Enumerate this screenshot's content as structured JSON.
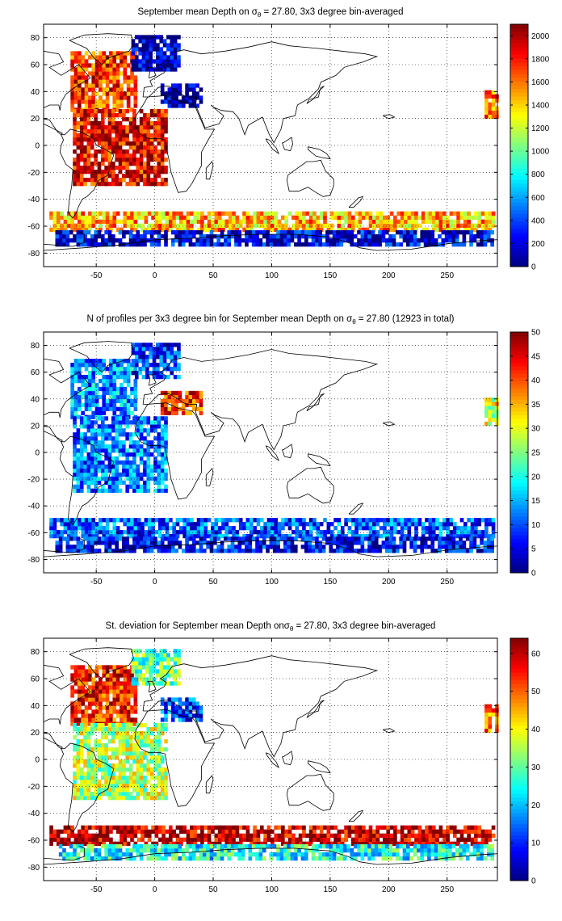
{
  "chart_data": [
    {
      "type": "heatmap",
      "title": "September mean Depth on σθ = 27.80, 3x3 degree bin-averaged",
      "title_parts": [
        "September mean Depth on σ",
        "θ",
        " = 27.80, 3x3 degree bin-averaged"
      ],
      "xlim": [
        -95,
        293
      ],
      "ylim": [
        -90,
        90
      ],
      "xticks": [
        -50,
        0,
        50,
        100,
        150,
        200,
        250
      ],
      "yticks": [
        -80,
        -60,
        -40,
        -20,
        0,
        20,
        40,
        60,
        80
      ],
      "colorbar": {
        "min": 0,
        "max": 2100,
        "ticks": [
          0,
          200,
          400,
          600,
          800,
          1000,
          1200,
          1400,
          1600,
          1800,
          2000
        ]
      },
      "grid": true,
      "colormap": "jet",
      "regions": [
        {
          "lon": [
            -72,
            -15
          ],
          "lat": [
            25,
            68
          ],
          "value": 1750
        },
        {
          "lon": [
            -70,
            10
          ],
          "lat": [
            -30,
            25
          ],
          "value": 1870
        },
        {
          "lon": [
            -20,
            20
          ],
          "lat": [
            55,
            82
          ],
          "value": 120
        },
        {
          "lon": [
            5,
            40
          ],
          "lat": [
            28,
            45
          ],
          "value": 60
        },
        {
          "lon": [
            -90,
            290
          ],
          "lat": [
            -64,
            -50
          ],
          "value": 1450
        },
        {
          "lon": [
            -85,
            290
          ],
          "lat": [
            -75,
            -64
          ],
          "value": 200
        },
        {
          "lon": [
            282,
            293
          ],
          "lat": [
            20,
            40
          ],
          "value": 1650
        }
      ]
    },
    {
      "type": "heatmap",
      "title": "N of profiles per 3x3 degree bin for September mean Depth on σθ = 27.80 (12923 in total)",
      "title_parts": [
        "N of profiles per 3x3 degree bin for September mean Depth on σ",
        "θ",
        " = 27.80 (12923 in total)"
      ],
      "xlim": [
        -95,
        293
      ],
      "ylim": [
        -90,
        90
      ],
      "xticks": [
        -50,
        0,
        50,
        100,
        150,
        200,
        250
      ],
      "yticks": [
        -80,
        -60,
        -40,
        -20,
        0,
        20,
        40,
        60,
        80
      ],
      "colorbar": {
        "min": 0,
        "max": 50,
        "ticks": [
          0,
          5,
          10,
          15,
          20,
          25,
          30,
          35,
          40,
          45,
          50
        ]
      },
      "grid": true,
      "colormap": "jet",
      "regions": [
        {
          "lon": [
            -72,
            -15
          ],
          "lat": [
            25,
            68
          ],
          "value": 14
        },
        {
          "lon": [
            -70,
            10
          ],
          "lat": [
            -30,
            25
          ],
          "value": 12
        },
        {
          "lon": [
            -20,
            20
          ],
          "lat": [
            55,
            82
          ],
          "value": 9
        },
        {
          "lon": [
            5,
            40
          ],
          "lat": [
            28,
            45
          ],
          "value": 42
        },
        {
          "lon": [
            -90,
            290
          ],
          "lat": [
            -64,
            -50
          ],
          "value": 10
        },
        {
          "lon": [
            -85,
            290
          ],
          "lat": [
            -75,
            -64
          ],
          "value": 6
        },
        {
          "lon": [
            282,
            293
          ],
          "lat": [
            20,
            40
          ],
          "value": 30
        }
      ]
    },
    {
      "type": "heatmap",
      "title": "St. deviation for September mean Depth onσθ = 27.80, 3x3 degree bin-averaged",
      "title_parts": [
        "St. deviation for September mean Depth onσ",
        "θ",
        " = 27.80, 3x3 degree bin-averaged"
      ],
      "xlim": [
        -95,
        293
      ],
      "ylim": [
        -90,
        90
      ],
      "xticks": [
        -50,
        0,
        50,
        100,
        150,
        200,
        250
      ],
      "yticks": [
        -80,
        -60,
        -40,
        -20,
        0,
        20,
        40,
        60,
        80
      ],
      "colorbar": {
        "min": 0,
        "max": 64,
        "ticks": [
          0,
          10,
          20,
          30,
          40,
          50,
          60
        ]
      },
      "grid": true,
      "colormap": "jet",
      "regions": [
        {
          "lon": [
            -72,
            -15
          ],
          "lat": [
            25,
            68
          ],
          "value": 55
        },
        {
          "lon": [
            -70,
            10
          ],
          "lat": [
            -30,
            25
          ],
          "value": 35
        },
        {
          "lon": [
            -20,
            20
          ],
          "lat": [
            55,
            82
          ],
          "value": 30
        },
        {
          "lon": [
            5,
            40
          ],
          "lat": [
            28,
            45
          ],
          "value": 12
        },
        {
          "lon": [
            -90,
            290
          ],
          "lat": [
            -64,
            -50
          ],
          "value": 60
        },
        {
          "lon": [
            -85,
            290
          ],
          "lat": [
            -75,
            -64
          ],
          "value": 25
        },
        {
          "lon": [
            282,
            293
          ],
          "lat": [
            20,
            40
          ],
          "value": 50
        }
      ]
    }
  ]
}
